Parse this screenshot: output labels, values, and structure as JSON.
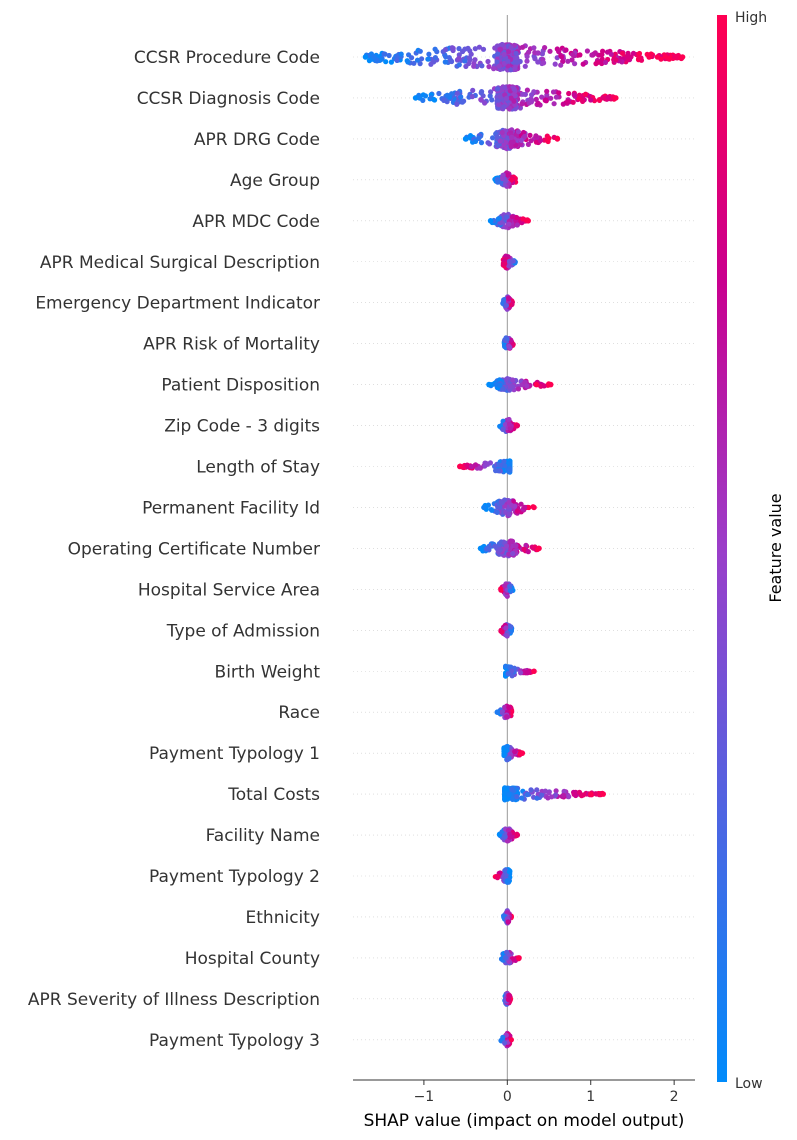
{
  "chart_data": {
    "type": "scatter",
    "subtype": "shap-beeswarm-summary",
    "xlabel": "SHAP value (impact on model output)",
    "xlim": [
      -1.85,
      2.25
    ],
    "xticks": [
      "−1",
      "0",
      "1",
      "2"
    ],
    "colorbar": {
      "title": "Feature value",
      "high_label": "High",
      "low_label": "Low",
      "low_color": "#008bfb",
      "high_color": "#ff0052"
    },
    "features": [
      {
        "name": "CCSR Procedure Code",
        "min": -1.7,
        "max": 2.1,
        "low_side": "left",
        "spread": 1.0,
        "outliers": [
          [
            -1.7,
            0.0
          ],
          [
            -1.6,
            0.1
          ],
          [
            1.7,
            1.0
          ],
          [
            1.8,
            1.0
          ],
          [
            2.1,
            1.0
          ]
        ]
      },
      {
        "name": "CCSR Diagnosis Code",
        "min": -1.1,
        "max": 1.3,
        "low_side": "left",
        "spread": 0.85,
        "outliers": [
          [
            -1.1,
            0.0
          ],
          [
            -1.05,
            0.05
          ],
          [
            1.3,
            1.0
          ]
        ]
      },
      {
        "name": "APR DRG Code",
        "min": -0.5,
        "max": 0.6,
        "low_side": "left",
        "spread": 0.7,
        "outliers": [
          [
            -0.5,
            0.0
          ],
          [
            0.6,
            1.0
          ]
        ]
      },
      {
        "name": "Age Group",
        "min": -0.15,
        "max": 0.1,
        "low_side": "left",
        "spread": 0.45,
        "outliers": []
      },
      {
        "name": "APR MDC Code",
        "min": -0.2,
        "max": 0.25,
        "low_side": "left",
        "spread": 0.45,
        "outliers": [
          [
            -0.2,
            0.0
          ],
          [
            0.25,
            1.0
          ]
        ]
      },
      {
        "name": "APR Medical Surgical Description",
        "min": -0.05,
        "max": 0.1,
        "low_side": "right",
        "spread": 0.4,
        "outliers": []
      },
      {
        "name": "Emergency Department Indicator",
        "min": -0.07,
        "max": 0.07,
        "low_side": "left",
        "spread": 0.4,
        "outliers": []
      },
      {
        "name": "APR Risk of Mortality",
        "min": -0.05,
        "max": 0.08,
        "low_side": "left",
        "spread": 0.4,
        "outliers": []
      },
      {
        "name": "Patient Disposition",
        "min": -0.22,
        "max": 0.52,
        "low_side": "left",
        "spread": 0.3,
        "outliers": [
          [
            -0.22,
            0.0
          ],
          [
            0.35,
            1.0
          ],
          [
            0.5,
            1.0
          ],
          [
            0.52,
            1.0
          ]
        ]
      },
      {
        "name": "Zip Code - 3 digits",
        "min": -0.1,
        "max": 0.12,
        "low_side": "left",
        "spread": 0.45,
        "outliers": [
          [
            0.12,
            0.9
          ]
        ]
      },
      {
        "name": "Length of Stay",
        "min": -0.57,
        "max": 0.03,
        "low_side": "right",
        "spread": 0.3,
        "outliers": [
          [
            -0.57,
            1.0
          ]
        ]
      },
      {
        "name": "Permanent Facility Id",
        "min": -0.28,
        "max": 0.32,
        "low_side": "left",
        "spread": 0.55,
        "outliers": [
          [
            -0.28,
            0.05
          ],
          [
            0.32,
            1.0
          ]
        ]
      },
      {
        "name": "Operating Certificate Number",
        "min": -0.32,
        "max": 0.38,
        "low_side": "left",
        "spread": 0.55,
        "outliers": [
          [
            -0.32,
            0.0
          ],
          [
            0.38,
            1.0
          ]
        ]
      },
      {
        "name": "Hospital Service Area",
        "min": -0.08,
        "max": 0.07,
        "low_side": "right",
        "spread": 0.4,
        "outliers": []
      },
      {
        "name": "Type of Admission",
        "min": -0.08,
        "max": 0.06,
        "low_side": "right",
        "spread": 0.4,
        "outliers": []
      },
      {
        "name": "Birth Weight",
        "min": -0.02,
        "max": 0.32,
        "low_side": "left",
        "spread": 0.3,
        "outliers": [
          [
            0.32,
            1.0
          ]
        ]
      },
      {
        "name": "Race",
        "min": -0.12,
        "max": 0.06,
        "low_side": "left",
        "spread": 0.4,
        "outliers": [
          [
            -0.12,
            0.1
          ]
        ]
      },
      {
        "name": "Payment Typology 1",
        "min": -0.04,
        "max": 0.18,
        "low_side": "left",
        "spread": 0.4,
        "outliers": [
          [
            0.18,
            1.0
          ]
        ]
      },
      {
        "name": "Total Costs",
        "min": -0.03,
        "max": 1.15,
        "low_side": "left",
        "spread": 0.35,
        "outliers": [
          [
            1.0,
            1.0
          ],
          [
            1.15,
            1.0
          ]
        ]
      },
      {
        "name": "Facility Name",
        "min": -0.1,
        "max": 0.12,
        "low_side": "left",
        "spread": 0.45,
        "outliers": [
          [
            0.12,
            0.9
          ]
        ]
      },
      {
        "name": "Payment Typology 2",
        "min": -0.15,
        "max": 0.03,
        "low_side": "right",
        "spread": 0.4,
        "outliers": []
      },
      {
        "name": "Ethnicity",
        "min": -0.05,
        "max": 0.05,
        "low_side": "left",
        "spread": 0.35,
        "outliers": []
      },
      {
        "name": "Hospital County",
        "min": -0.08,
        "max": 0.14,
        "low_side": "left",
        "spread": 0.4,
        "outliers": [
          [
            0.14,
            1.0
          ]
        ]
      },
      {
        "name": "APR Severity of Illness Description",
        "min": -0.04,
        "max": 0.04,
        "low_side": "left",
        "spread": 0.35,
        "outliers": []
      },
      {
        "name": "Payment Typology 3",
        "min": -0.08,
        "max": 0.05,
        "low_side": "left",
        "spread": 0.35,
        "outliers": []
      }
    ]
  }
}
